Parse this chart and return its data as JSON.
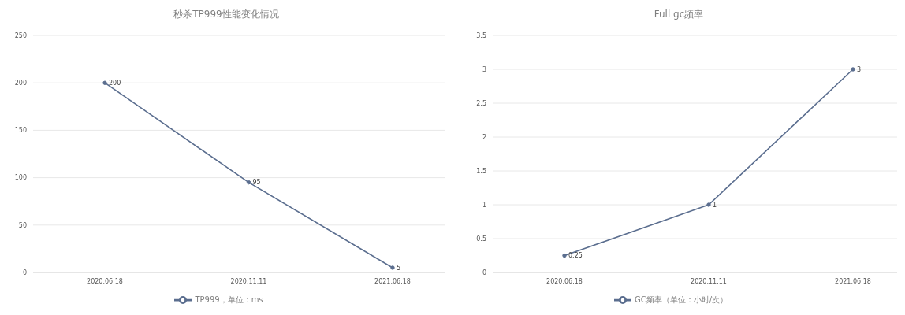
{
  "chart_data": [
    {
      "type": "line",
      "title": "秒杀TP999性能变化情况",
      "categories": [
        "2020.06.18",
        "2020.11.11",
        "2021.06.18"
      ],
      "series": [
        {
          "name": "TP999，单位：ms",
          "color": "#5b6e8f",
          "values": [
            200,
            95,
            5
          ]
        }
      ],
      "ylim": [
        0,
        250
      ],
      "yticks": [
        0,
        50,
        100,
        150,
        200,
        250
      ],
      "grid": "y",
      "legend": "bottom",
      "data_labels": true,
      "marker": "circle"
    },
    {
      "type": "line",
      "title": "Full gc频率",
      "categories": [
        "2020.06.18",
        "2020.11.11",
        "2021.06.18"
      ],
      "series": [
        {
          "name": "GC频率（单位：小时/次）",
          "color": "#5b6e8f",
          "values": [
            0.25,
            1,
            3
          ]
        }
      ],
      "ylim": [
        0,
        3.5
      ],
      "yticks": [
        0,
        0.5,
        1,
        1.5,
        2,
        2.5,
        3,
        3.5
      ],
      "grid": "y",
      "legend": "bottom",
      "data_labels": true,
      "marker": "circle"
    }
  ]
}
